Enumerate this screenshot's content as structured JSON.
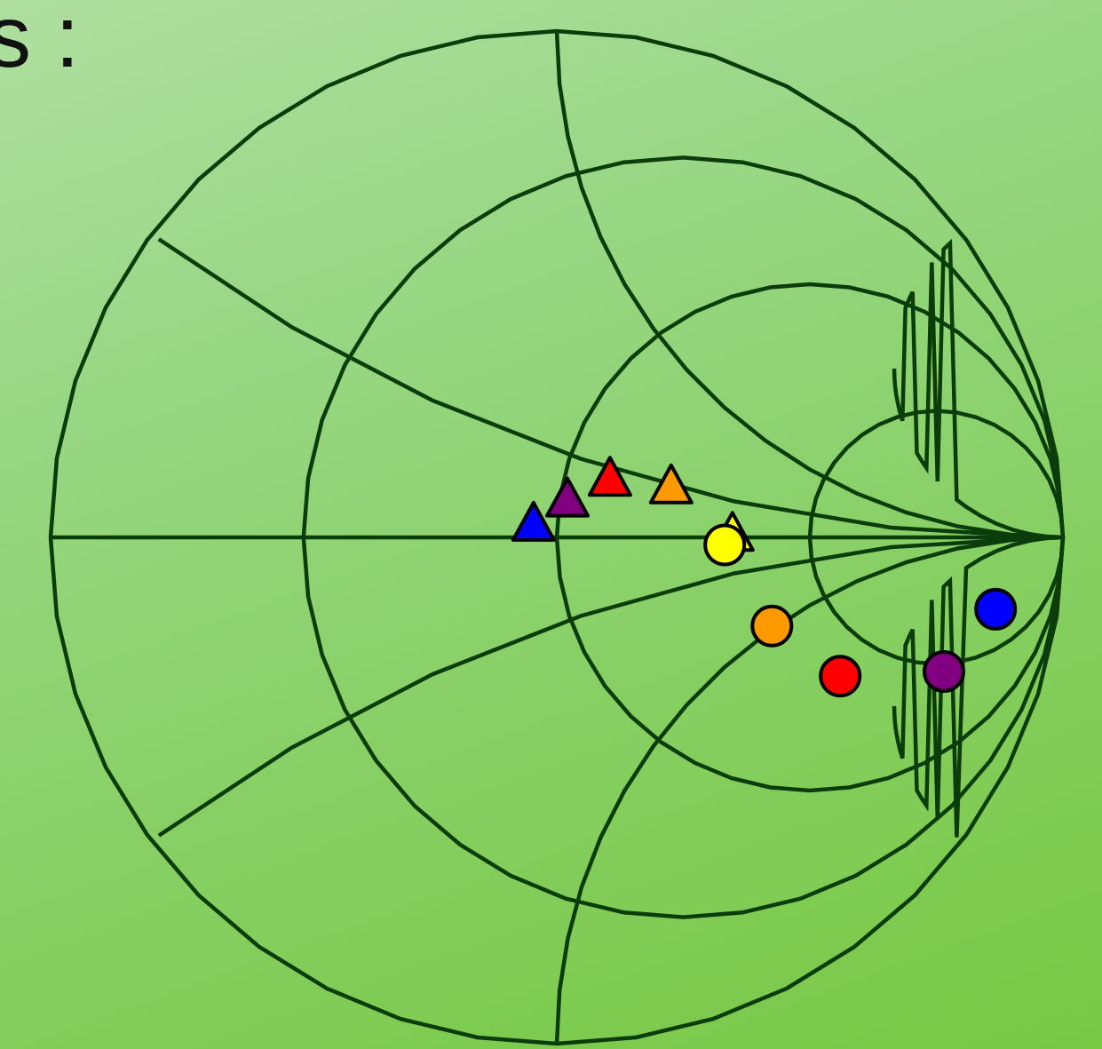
{
  "heading": "s :",
  "colors": {
    "background_top": "#b0dfa0",
    "background_bottom": "#78c844",
    "grid": "#0b3d0b",
    "outline": "#000000"
  },
  "diagram": {
    "type": "smith-chart",
    "resistance_circles": [
      0,
      0.333,
      1,
      3
    ],
    "reactance_arcs": [
      0.333,
      1,
      3,
      -0.333,
      -1,
      -3
    ],
    "markers": [
      {
        "shape": "triangle",
        "color": "#ffff00",
        "label": "yellow-triangle"
      },
      {
        "shape": "circle",
        "color": "#ffff00",
        "label": "yellow-circle"
      },
      {
        "shape": "triangle",
        "color": "#0000ff",
        "label": "blue-triangle"
      },
      {
        "shape": "triangle",
        "color": "#800080",
        "label": "purple-triangle"
      },
      {
        "shape": "triangle",
        "color": "#ff0000",
        "label": "red-triangle"
      },
      {
        "shape": "triangle",
        "color": "#ff9900",
        "label": "orange-triangle"
      },
      {
        "shape": "circle",
        "color": "#ff9900",
        "label": "orange-circle"
      },
      {
        "shape": "circle",
        "color": "#ff0000",
        "label": "red-circle"
      },
      {
        "shape": "circle",
        "color": "#800080",
        "label": "purple-circle"
      },
      {
        "shape": "circle",
        "color": "#0000ff",
        "label": "blue-circle"
      }
    ]
  }
}
